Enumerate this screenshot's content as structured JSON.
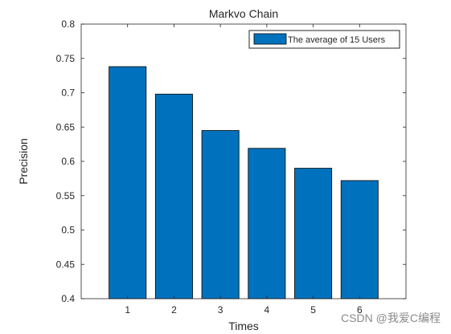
{
  "chart_data": {
    "type": "bar",
    "title": "Markvo Chain",
    "xlabel": "Times",
    "ylabel": "Precision",
    "categories": [
      "1",
      "2",
      "3",
      "4",
      "5",
      "6"
    ],
    "series": [
      {
        "name": "The average of 15 Users",
        "values": [
          0.738,
          0.698,
          0.645,
          0.619,
          0.59,
          0.572
        ],
        "color": "#0072BD"
      }
    ],
    "ylim": [
      0.4,
      0.8
    ],
    "yticks": [
      "0.4",
      "0.45",
      "0.5",
      "0.55",
      "0.6",
      "0.65",
      "0.7",
      "0.75",
      "0.8"
    ],
    "xlim": [
      0,
      7
    ],
    "grid": false,
    "legend": "top-right"
  },
  "watermark": "CSDN @我爱C编程",
  "colors": {
    "bar": "#0072BD",
    "axis": "#262626",
    "background": "#ffffff"
  }
}
